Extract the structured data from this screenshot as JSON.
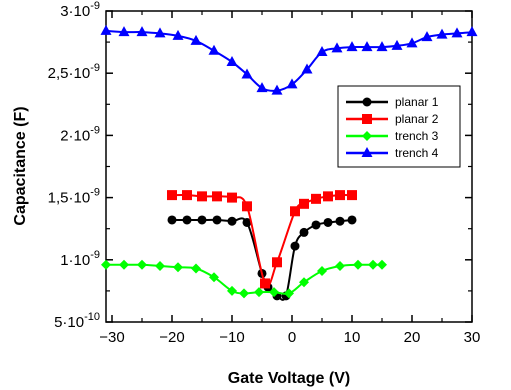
{
  "chart_data": {
    "type": "line",
    "title": "",
    "xlabel": "Gate Voltage (V)",
    "ylabel": "Capacitance (F)",
    "xlim": [
      -31,
      30
    ],
    "ylim": [
      5e-10,
      3e-09
    ],
    "x_ticks": [
      {
        "value": -30,
        "label": "−30"
      },
      {
        "value": -20,
        "label": "−20"
      },
      {
        "value": -10,
        "label": "−10"
      },
      {
        "value": 0,
        "label": "0"
      },
      {
        "value": 10,
        "label": "10"
      },
      {
        "value": 20,
        "label": "20"
      },
      {
        "value": 30,
        "label": "30"
      }
    ],
    "y_ticks": [
      {
        "value": 5e-10,
        "mantissa": "5",
        "sep": "·",
        "base": "10",
        "exp": "-10"
      },
      {
        "value": 1e-09,
        "mantissa": "1",
        "sep": "·",
        "base": "10",
        "exp": "-9"
      },
      {
        "value": 1.5e-09,
        "mantissa": "1,5",
        "sep": "·",
        "base": "10",
        "exp": "-9"
      },
      {
        "value": 2e-09,
        "mantissa": "2",
        "sep": "·",
        "base": "10",
        "exp": "-9"
      },
      {
        "value": 2.5e-09,
        "mantissa": "2,5",
        "sep": "·",
        "base": "10",
        "exp": "-9"
      },
      {
        "value": 3e-09,
        "mantissa": "3",
        "sep": "·",
        "base": "10",
        "exp": "-9"
      }
    ],
    "grid": false,
    "legend_position": "top-right",
    "series": [
      {
        "name": "planar 1",
        "color": "#000000",
        "marker": "circle",
        "x": [
          -20,
          -17.5,
          -15,
          -12.5,
          -10,
          -7.5,
          -5,
          -4,
          -2.5,
          -1,
          0.5,
          2,
          4,
          6,
          8,
          10
        ],
        "y": [
          1.32e-09,
          1.32e-09,
          1.32e-09,
          1.32e-09,
          1.31e-09,
          1.3e-09,
          8.9e-10,
          7.8e-10,
          7.1e-10,
          7.1e-10,
          1.11e-09,
          1.22e-09,
          1.28e-09,
          1.3e-09,
          1.31e-09,
          1.32e-09
        ]
      },
      {
        "name": "planar 2",
        "color": "#ff0000",
        "marker": "square",
        "x": [
          -20,
          -17.5,
          -15,
          -12.5,
          -10,
          -7.5,
          -4.5,
          -2.5,
          0.5,
          2,
          4,
          6,
          8,
          10
        ],
        "y": [
          1.52e-09,
          1.52e-09,
          1.51e-09,
          1.51e-09,
          1.5e-09,
          1.43e-09,
          8.1e-10,
          9.8e-10,
          1.39e-09,
          1.45e-09,
          1.49e-09,
          1.51e-09,
          1.52e-09,
          1.52e-09
        ]
      },
      {
        "name": "trench 3",
        "color": "#00ff00",
        "marker": "diamond",
        "x": [
          -31,
          -28,
          -25,
          -22,
          -19,
          -16,
          -13,
          -10,
          -8,
          -5.5,
          -3,
          -0.5,
          2,
          5,
          8,
          11,
          13.5,
          15
        ],
        "y": [
          9.6e-10,
          9.6e-10,
          9.6e-10,
          9.5e-10,
          9.4e-10,
          9.3e-10,
          8.6e-10,
          7.5e-10,
          7.3e-10,
          7.4e-10,
          7.4e-10,
          7.3e-10,
          8.2e-10,
          9.1e-10,
          9.5e-10,
          9.6e-10,
          9.6e-10,
          9.6e-10
        ]
      },
      {
        "name": "trench 4",
        "color": "#0000ff",
        "marker": "triangle",
        "x": [
          -31,
          -28,
          -25,
          -22,
          -19,
          -16,
          -13,
          -10,
          -7.5,
          -5,
          -2.5,
          0,
          2.5,
          5,
          7.5,
          10,
          12.5,
          15,
          17.5,
          20,
          22.5,
          25,
          27.5,
          30
        ],
        "y": [
          2.84e-09,
          2.83e-09,
          2.83e-09,
          2.82e-09,
          2.8e-09,
          2.76e-09,
          2.68e-09,
          2.59e-09,
          2.49e-09,
          2.38e-09,
          2.36e-09,
          2.41e-09,
          2.53e-09,
          2.67e-09,
          2.7e-09,
          2.71e-09,
          2.71e-09,
          2.71e-09,
          2.72e-09,
          2.74e-09,
          2.79e-09,
          2.81e-09,
          2.82e-09,
          2.83e-09
        ]
      }
    ]
  }
}
